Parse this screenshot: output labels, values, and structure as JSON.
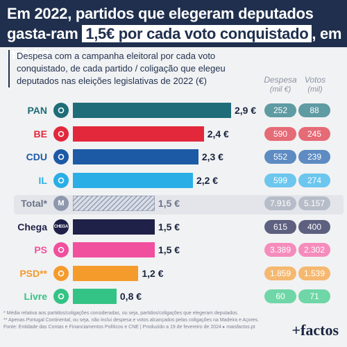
{
  "header": {
    "title_part1": "Em 2022, partidos que elegeram deputados gasta-ram",
    "title_highlight": "1,5€ por cada voto conquistado",
    "title_part2": ", em média"
  },
  "subtitle": "Despesa com a campanha eleitoral por cada voto conquistado, de cada partido / coligação que elegeu deputados nas eleições legislativas de 2022 (€)",
  "columns": {
    "despesa_label": "Despesa",
    "despesa_unit": "(mil €)",
    "votos_label": "Votos",
    "votos_unit": "(mil)"
  },
  "notes": {
    "note1": "* Média relativa aos partidos/coligações consideradas, ou seja, partidos/coligações que elegeram deputados.",
    "note2": "** Apenas Portugal Continental, ou seja, não inclui despesa e votos alcançados pelas coligações na Madeira e Açores.",
    "source": "Fonte: Entidade das Contas e Financiamentos Políticos e CNE  |  Produzido a 19 de fevereiro de 2024 ▸ maisfactos.pt"
  },
  "brand": "+factos",
  "chart_data": {
    "type": "bar",
    "orientation": "horizontal",
    "categories": [
      "PAN",
      "BE",
      "CDU",
      "IL",
      "Total*",
      "Chega",
      "PS",
      "PSD**",
      "Livre"
    ],
    "values": [
      2.9,
      2.4,
      2.3,
      2.2,
      1.5,
      1.5,
      1.5,
      1.2,
      0.8
    ],
    "value_labels": [
      "2,9 €",
      "2,4 €",
      "2,3 €",
      "2,2 €",
      "1,5 €",
      "1,5 €",
      "1,5 €",
      "1,2 €",
      "0,8 €"
    ],
    "xlim": [
      0,
      2.9
    ],
    "despesa_mil_eur": [
      "252",
      "590",
      "552",
      "599",
      "7.916",
      "615",
      "3.389",
      "1.859",
      "60"
    ],
    "votos_mil": [
      "88",
      "245",
      "239",
      "274",
      "5.157",
      "400",
      "2.302",
      "1.539",
      "71"
    ],
    "colors": [
      "#1e6d78",
      "#e3283b",
      "#1d5aa6",
      "#2aaee6",
      "#9aa4b6",
      "#1f2148",
      "#f0509e",
      "#f59b2c",
      "#33c385"
    ],
    "pill_colors_despesa": [
      "#5f9ba3",
      "#e56b76",
      "#5d8bc2",
      "#6cc6ee",
      "#b7bdc8",
      "#5e6080",
      "#f48cbc",
      "#f5b870",
      "#6fd6a7"
    ],
    "pill_colors_votos": [
      "#5f9ba3",
      "#e56b76",
      "#5d8bc2",
      "#6cc6ee",
      "#b7bdc8",
      "#5e6080",
      "#f48cbc",
      "#f5b870",
      "#6fd6a7"
    ],
    "logos": [
      "PAN-logo",
      "BE-logo",
      "CDU-logo",
      "IL-logo",
      "M-logo",
      "CHEGA-logo",
      "PS-logo",
      "PSD-logo",
      "Livre-logo"
    ],
    "logo_text": [
      "",
      "",
      "",
      "",
      "M",
      "CHEGA",
      "",
      "",
      ""
    ]
  }
}
